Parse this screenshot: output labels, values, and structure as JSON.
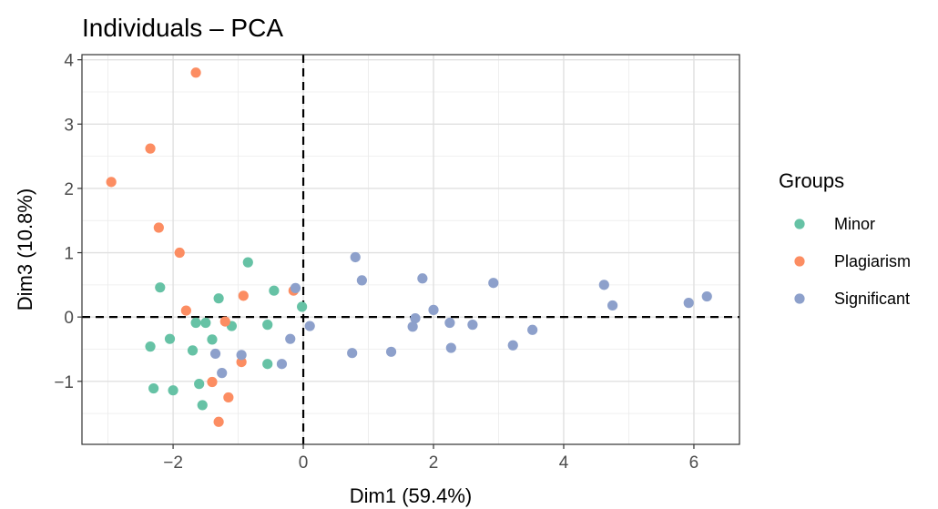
{
  "chart_data": {
    "type": "scatter",
    "title": "Individuals – PCA",
    "xlabel": "Dim1 (59.4%)",
    "ylabel": "Dim3 (10.8%)",
    "xlim": [
      -3.4,
      6.7
    ],
    "ylim": [
      -1.98,
      4.08
    ],
    "xticks": [
      -2,
      0,
      2,
      4,
      6
    ],
    "xtick_labels": [
      "−2",
      "0",
      "2",
      "4",
      "6"
    ],
    "yticks": [
      -1,
      0,
      1,
      2,
      3,
      4
    ],
    "ytick_labels": [
      "−1",
      "0",
      "1",
      "2",
      "3",
      "4"
    ],
    "grid": true,
    "reference_lines": {
      "x": 0,
      "y": 0,
      "style": "dashed"
    },
    "legend": {
      "title": "Groups",
      "placement": "right"
    },
    "series": [
      {
        "name": "Minor",
        "color": "#66c2a5",
        "points": [
          [
            -2.2,
            0.46
          ],
          [
            -0.85,
            0.85
          ],
          [
            -1.3,
            0.29
          ],
          [
            -0.45,
            0.41
          ],
          [
            -0.02,
            0.16
          ],
          [
            -1.65,
            -0.09
          ],
          [
            -1.5,
            -0.09
          ],
          [
            -1.1,
            -0.14
          ],
          [
            -0.55,
            -0.12
          ],
          [
            -2.05,
            -0.34
          ],
          [
            -1.4,
            -0.35
          ],
          [
            -2.35,
            -0.46
          ],
          [
            -1.7,
            -0.52
          ],
          [
            -0.55,
            -0.73
          ],
          [
            -2.3,
            -1.11
          ],
          [
            -2.0,
            -1.14
          ],
          [
            -1.6,
            -1.04
          ],
          [
            -1.55,
            -1.37
          ]
        ]
      },
      {
        "name": "Plagiarism",
        "color": "#fc8d62",
        "points": [
          [
            -1.65,
            3.8
          ],
          [
            -2.35,
            2.62
          ],
          [
            -2.95,
            2.1
          ],
          [
            -2.22,
            1.39
          ],
          [
            -1.9,
            1.0
          ],
          [
            -0.92,
            0.33
          ],
          [
            -0.15,
            0.41
          ],
          [
            -1.8,
            0.1
          ],
          [
            -1.2,
            -0.07
          ],
          [
            -0.95,
            -0.7
          ],
          [
            -1.4,
            -1.01
          ],
          [
            -1.15,
            -1.25
          ],
          [
            -1.3,
            -1.63
          ]
        ]
      },
      {
        "name": "Significant",
        "color": "#8da0cb",
        "points": [
          [
            0.8,
            0.93
          ],
          [
            0.9,
            0.57
          ],
          [
            1.83,
            0.6
          ],
          [
            2.92,
            0.53
          ],
          [
            4.62,
            0.5
          ],
          [
            6.2,
            0.32
          ],
          [
            5.92,
            0.22
          ],
          [
            4.75,
            0.18
          ],
          [
            -0.12,
            0.45
          ],
          [
            2.0,
            0.11
          ],
          [
            1.72,
            -0.02
          ],
          [
            1.68,
            -0.15
          ],
          [
            2.25,
            -0.09
          ],
          [
            2.6,
            -0.12
          ],
          [
            3.52,
            -0.2
          ],
          [
            0.1,
            -0.14
          ],
          [
            -0.2,
            -0.34
          ],
          [
            0.75,
            -0.56
          ],
          [
            1.35,
            -0.54
          ],
          [
            2.27,
            -0.48
          ],
          [
            3.22,
            -0.44
          ],
          [
            -1.35,
            -0.57
          ],
          [
            -0.95,
            -0.59
          ],
          [
            -0.33,
            -0.73
          ],
          [
            -1.25,
            -0.87
          ]
        ]
      }
    ]
  }
}
